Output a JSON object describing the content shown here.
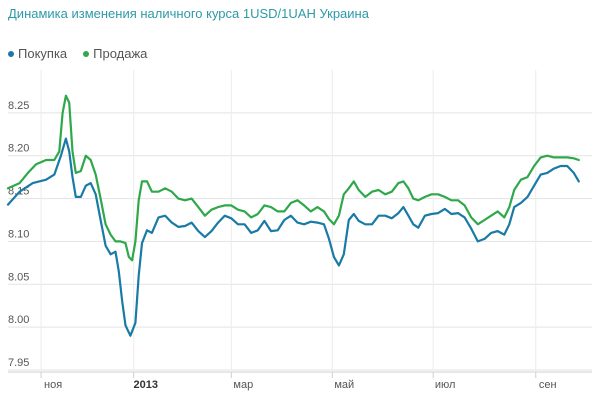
{
  "chart_data": {
    "type": "line",
    "title": "Динамика изменения наличного курса 1USD/1UAH Украина",
    "ylim": [
      7.95,
      8.3
    ],
    "y_ticks": [
      "7.95",
      "8.00",
      "8.05",
      "8.10",
      "8.15",
      "8.20",
      "8.25"
    ],
    "x_ticks": [
      {
        "label": "ноя",
        "bold": false,
        "t": 5
      },
      {
        "label": "2013",
        "bold": true,
        "t": 61
      },
      {
        "label": "мар",
        "bold": false,
        "t": 120
      },
      {
        "label": "май",
        "bold": false,
        "t": 181
      },
      {
        "label": "июл",
        "bold": false,
        "t": 242
      },
      {
        "label": "сен",
        "bold": false,
        "t": 304
      }
    ],
    "x_range": [
      -15,
      338
    ],
    "grid": true,
    "legend_position": "top-left",
    "series": [
      {
        "name": "Покупка",
        "color": "#1a7aa6",
        "points": [
          [
            -15,
            8.143
          ],
          [
            -8,
            8.158
          ],
          [
            0,
            8.168
          ],
          [
            8,
            8.172
          ],
          [
            13,
            8.178
          ],
          [
            17,
            8.2
          ],
          [
            20,
            8.22
          ],
          [
            22,
            8.205
          ],
          [
            24,
            8.175
          ],
          [
            26,
            8.152
          ],
          [
            29,
            8.152
          ],
          [
            32,
            8.165
          ],
          [
            35,
            8.168
          ],
          [
            38,
            8.155
          ],
          [
            41,
            8.125
          ],
          [
            44,
            8.095
          ],
          [
            47,
            8.085
          ],
          [
            50,
            8.088
          ],
          [
            52,
            8.065
          ],
          [
            54,
            8.03
          ],
          [
            56,
            8.002
          ],
          [
            59,
            7.99
          ],
          [
            62,
            8.005
          ],
          [
            64,
            8.06
          ],
          [
            66,
            8.098
          ],
          [
            69,
            8.113
          ],
          [
            72,
            8.11
          ],
          [
            76,
            8.128
          ],
          [
            80,
            8.13
          ],
          [
            84,
            8.122
          ],
          [
            88,
            8.117
          ],
          [
            92,
            8.118
          ],
          [
            96,
            8.122
          ],
          [
            100,
            8.112
          ],
          [
            104,
            8.105
          ],
          [
            108,
            8.112
          ],
          [
            112,
            8.122
          ],
          [
            116,
            8.13
          ],
          [
            120,
            8.127
          ],
          [
            124,
            8.12
          ],
          [
            128,
            8.12
          ],
          [
            132,
            8.11
          ],
          [
            136,
            8.113
          ],
          [
            140,
            8.124
          ],
          [
            144,
            8.112
          ],
          [
            148,
            8.113
          ],
          [
            152,
            8.125
          ],
          [
            156,
            8.13
          ],
          [
            160,
            8.122
          ],
          [
            164,
            8.12
          ],
          [
            168,
            8.123
          ],
          [
            172,
            8.122
          ],
          [
            176,
            8.12
          ],
          [
            179,
            8.103
          ],
          [
            182,
            8.082
          ],
          [
            185,
            8.072
          ],
          [
            188,
            8.085
          ],
          [
            191,
            8.125
          ],
          [
            194,
            8.132
          ],
          [
            197,
            8.124
          ],
          [
            201,
            8.12
          ],
          [
            205,
            8.12
          ],
          [
            209,
            8.13
          ],
          [
            213,
            8.13
          ],
          [
            217,
            8.127
          ],
          [
            221,
            8.133
          ],
          [
            224,
            8.14
          ],
          [
            227,
            8.13
          ],
          [
            230,
            8.12
          ],
          [
            233,
            8.116
          ],
          [
            237,
            8.13
          ],
          [
            241,
            8.132
          ],
          [
            245,
            8.133
          ],
          [
            249,
            8.138
          ],
          [
            253,
            8.132
          ],
          [
            257,
            8.133
          ],
          [
            261,
            8.128
          ],
          [
            265,
            8.115
          ],
          [
            269,
            8.1
          ],
          [
            273,
            8.103
          ],
          [
            277,
            8.11
          ],
          [
            281,
            8.112
          ],
          [
            285,
            8.108
          ],
          [
            288,
            8.12
          ],
          [
            291,
            8.14
          ],
          [
            295,
            8.145
          ],
          [
            299,
            8.152
          ],
          [
            303,
            8.165
          ],
          [
            307,
            8.178
          ],
          [
            311,
            8.18
          ],
          [
            315,
            8.185
          ],
          [
            319,
            8.188
          ],
          [
            323,
            8.188
          ],
          [
            327,
            8.18
          ],
          [
            330,
            8.17
          ]
        ]
      },
      {
        "name": "Продажа",
        "color": "#2ea84a",
        "points": [
          [
            -15,
            8.162
          ],
          [
            -8,
            8.168
          ],
          [
            -3,
            8.18
          ],
          [
            2,
            8.19
          ],
          [
            8,
            8.195
          ],
          [
            13,
            8.195
          ],
          [
            16,
            8.205
          ],
          [
            18,
            8.25
          ],
          [
            20,
            8.27
          ],
          [
            22,
            8.262
          ],
          [
            24,
            8.205
          ],
          [
            26,
            8.18
          ],
          [
            29,
            8.182
          ],
          [
            32,
            8.2
          ],
          [
            35,
            8.195
          ],
          [
            38,
            8.178
          ],
          [
            41,
            8.15
          ],
          [
            44,
            8.12
          ],
          [
            47,
            8.108
          ],
          [
            50,
            8.1
          ],
          [
            53,
            8.1
          ],
          [
            56,
            8.098
          ],
          [
            58,
            8.082
          ],
          [
            60,
            8.078
          ],
          [
            62,
            8.1
          ],
          [
            64,
            8.148
          ],
          [
            66,
            8.17
          ],
          [
            69,
            8.17
          ],
          [
            72,
            8.158
          ],
          [
            76,
            8.158
          ],
          [
            80,
            8.162
          ],
          [
            84,
            8.158
          ],
          [
            88,
            8.15
          ],
          [
            92,
            8.148
          ],
          [
            96,
            8.15
          ],
          [
            100,
            8.14
          ],
          [
            104,
            8.13
          ],
          [
            108,
            8.137
          ],
          [
            112,
            8.14
          ],
          [
            116,
            8.142
          ],
          [
            120,
            8.142
          ],
          [
            124,
            8.137
          ],
          [
            128,
            8.135
          ],
          [
            132,
            8.128
          ],
          [
            136,
            8.132
          ],
          [
            140,
            8.142
          ],
          [
            144,
            8.14
          ],
          [
            148,
            8.135
          ],
          [
            152,
            8.135
          ],
          [
            156,
            8.145
          ],
          [
            160,
            8.148
          ],
          [
            164,
            8.142
          ],
          [
            168,
            8.135
          ],
          [
            172,
            8.14
          ],
          [
            176,
            8.135
          ],
          [
            179,
            8.126
          ],
          [
            182,
            8.12
          ],
          [
            185,
            8.13
          ],
          [
            188,
            8.155
          ],
          [
            191,
            8.162
          ],
          [
            194,
            8.17
          ],
          [
            197,
            8.16
          ],
          [
            201,
            8.152
          ],
          [
            205,
            8.158
          ],
          [
            209,
            8.16
          ],
          [
            213,
            8.155
          ],
          [
            217,
            8.158
          ],
          [
            221,
            8.168
          ],
          [
            224,
            8.17
          ],
          [
            227,
            8.162
          ],
          [
            230,
            8.15
          ],
          [
            233,
            8.148
          ],
          [
            237,
            8.152
          ],
          [
            241,
            8.155
          ],
          [
            245,
            8.155
          ],
          [
            249,
            8.152
          ],
          [
            253,
            8.148
          ],
          [
            257,
            8.148
          ],
          [
            261,
            8.142
          ],
          [
            265,
            8.128
          ],
          [
            269,
            8.12
          ],
          [
            273,
            8.125
          ],
          [
            277,
            8.13
          ],
          [
            281,
            8.135
          ],
          [
            285,
            8.128
          ],
          [
            288,
            8.14
          ],
          [
            291,
            8.16
          ],
          [
            295,
            8.172
          ],
          [
            299,
            8.175
          ],
          [
            303,
            8.188
          ],
          [
            307,
            8.198
          ],
          [
            311,
            8.2
          ],
          [
            315,
            8.198
          ],
          [
            319,
            8.198
          ],
          [
            323,
            8.198
          ],
          [
            327,
            8.197
          ],
          [
            330,
            8.195
          ]
        ]
      }
    ]
  }
}
